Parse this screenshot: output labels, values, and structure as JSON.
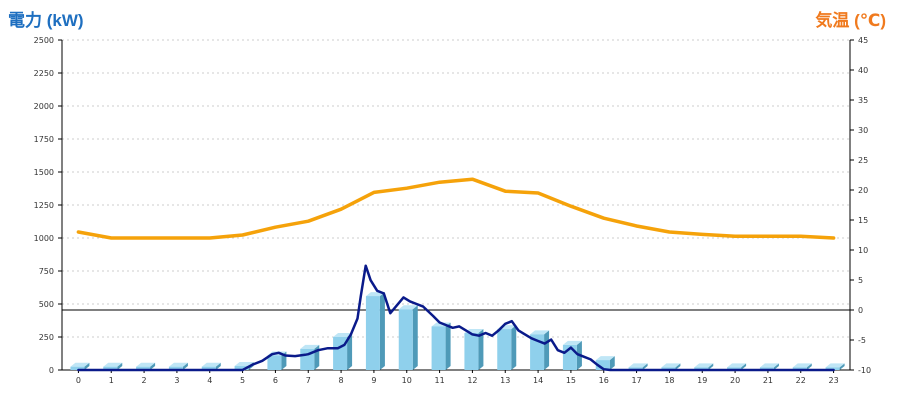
{
  "header": {
    "left_axis_title": "電力 (kW)",
    "right_axis_title": "気温 (℃)"
  },
  "colors": {
    "bar_front": "#8fd0ec",
    "bar_side": "#4f9ab8",
    "bar_top": "#bfe6f6",
    "power_line": "#0a1a8a",
    "temperature_line": "#f5a20a",
    "grid": "#bfbfbf",
    "zero_line": "#000000"
  },
  "chart_data": {
    "type": "bar",
    "categories": [
      "0",
      "1",
      "2",
      "3",
      "4",
      "5",
      "6",
      "7",
      "8",
      "9",
      "10",
      "11",
      "12",
      "13",
      "14",
      "15",
      "16",
      "17",
      "18",
      "19",
      "20",
      "21",
      "22",
      "23"
    ],
    "left_axis": {
      "label": "電力 (kW)",
      "ylim": [
        0,
        2500
      ],
      "ticks": [
        "0",
        "250",
        "500",
        "750",
        "1000",
        "1250",
        "1500",
        "1750",
        "2000",
        "2250",
        "2500"
      ]
    },
    "right_axis": {
      "label": "気温 (℃)",
      "ylim": [
        -10,
        45
      ],
      "ticks": [
        "-10",
        "-5",
        "0",
        "5",
        "10",
        "15",
        "20",
        "25",
        "30",
        "35",
        "40",
        "45"
      ]
    },
    "grid": true,
    "reference_line": {
      "axis": "right",
      "value": 0
    },
    "series": [
      {
        "kind": "bar",
        "axis": "left",
        "values": [
          25,
          25,
          25,
          25,
          25,
          30,
          110,
          160,
          250,
          560,
          460,
          330,
          280,
          310,
          270,
          190,
          75,
          20,
          20,
          20,
          20,
          20,
          20,
          20
        ]
      },
      {
        "kind": "line",
        "axis": "left",
        "x": [
          0,
          5.0,
          5.3,
          5.6,
          5.9,
          6.1,
          6.3,
          6.6,
          6.9,
          7.0,
          7.3,
          7.6,
          7.9,
          8.1,
          8.3,
          8.5,
          8.6,
          8.75,
          8.9,
          9.1,
          9.3,
          9.5,
          9.7,
          9.9,
          10.1,
          10.3,
          10.5,
          10.8,
          11.0,
          11.2,
          11.4,
          11.6,
          11.8,
          12.0,
          12.2,
          12.4,
          12.6,
          12.8,
          13.0,
          13.2,
          13.4,
          13.6,
          13.8,
          14.0,
          14.2,
          14.4,
          14.6,
          14.8,
          15.0,
          15.2,
          15.4,
          15.6,
          15.8,
          16.0,
          16.2,
          16.4,
          23
        ],
        "values": [
          0,
          0,
          40,
          70,
          120,
          130,
          110,
          105,
          115,
          120,
          150,
          165,
          165,
          190,
          270,
          390,
          560,
          790,
          680,
          600,
          580,
          430,
          490,
          550,
          520,
          500,
          480,
          410,
          360,
          340,
          320,
          330,
          300,
          270,
          260,
          280,
          260,
          300,
          350,
          370,
          300,
          270,
          240,
          220,
          200,
          230,
          150,
          130,
          170,
          120,
          100,
          80,
          40,
          5,
          0,
          0,
          0
        ]
      },
      {
        "kind": "line",
        "axis": "right",
        "values": [
          13,
          12,
          12,
          12,
          12,
          12.5,
          13.8,
          14.8,
          16.8,
          19.6,
          20.3,
          21.3,
          21.8,
          19.8,
          19.5,
          17.3,
          15.3,
          14.0,
          13.0,
          12.6,
          12.3,
          12.3,
          12.3,
          12.0
        ]
      }
    ]
  }
}
